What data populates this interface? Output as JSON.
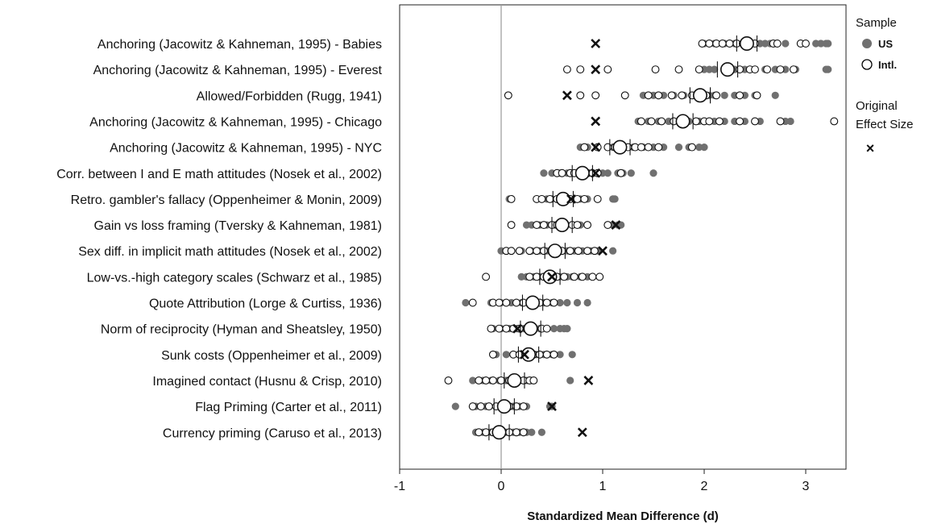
{
  "chart_data": {
    "type": "scatter",
    "title": "",
    "xlabel": "Standardized Mean Difference (d)",
    "ylabel": "",
    "xlim": [
      -1,
      3.4
    ],
    "xticks": [
      -1,
      0,
      1,
      2,
      3
    ],
    "grid": false,
    "reference_line": 0,
    "legend": {
      "title": "Sample",
      "position": "right",
      "entries": [
        {
          "name": "US",
          "marker": "filled-circle",
          "color": "#707070"
        },
        {
          "name": "Intl.",
          "marker": "open-circle",
          "color": "#000000"
        }
      ],
      "original_title_line1": "Original",
      "original_title_line2": "Effect Size",
      "original_marker": "×"
    },
    "rows": [
      {
        "label": "Anchoring (Jacowitz & Kahneman, 1995) - Babies",
        "mean": 2.42,
        "original": 0.93,
        "us": [
          2.0,
          2.1,
          2.2,
          2.3,
          2.45,
          2.55,
          2.6,
          2.7,
          2.8,
          3.1,
          3.15,
          3.2,
          3.22,
          2.65
        ],
        "intl": [
          1.98,
          2.05,
          2.12,
          2.18,
          2.25,
          2.32,
          2.38,
          2.5,
          2.68,
          2.72,
          2.95,
          3.0
        ]
      },
      {
        "label": "Anchoring (Jacowitz & Kahneman, 1995) - Everest",
        "mean": 2.23,
        "original": 0.93,
        "us": [
          2.0,
          2.05,
          2.1,
          2.2,
          2.3,
          2.4,
          2.5,
          2.6,
          2.7,
          2.8,
          2.9,
          3.2,
          3.22
        ],
        "intl": [
          0.65,
          0.78,
          1.05,
          1.52,
          1.75,
          1.95,
          2.35,
          2.45,
          2.5,
          2.62,
          2.75,
          2.88
        ]
      },
      {
        "label": "Allowed/Forbidden (Rugg, 1941)",
        "mean": 1.96,
        "original": 0.65,
        "us": [
          1.4,
          1.5,
          1.6,
          1.7,
          1.8,
          1.9,
          2.0,
          2.05,
          2.1,
          2.2,
          2.3,
          2.4,
          2.5,
          2.7
        ],
        "intl": [
          0.07,
          0.78,
          0.93,
          1.22,
          1.45,
          1.55,
          1.68,
          1.78,
          1.88,
          2.02,
          2.12,
          2.35,
          2.52
        ]
      },
      {
        "label": "Anchoring (Jacowitz & Kahneman, 1995) - Chicago",
        "mean": 1.79,
        "original": 0.93,
        "us": [
          1.35,
          1.45,
          1.55,
          1.65,
          1.75,
          1.85,
          1.95,
          2.1,
          2.2,
          2.3,
          2.4,
          2.5,
          2.55,
          2.8,
          2.85
        ],
        "intl": [
          1.38,
          1.48,
          1.58,
          1.7,
          1.8,
          1.92,
          2.0,
          2.05,
          2.15,
          2.35,
          2.5,
          2.75,
          3.28
        ]
      },
      {
        "label": "Anchoring (Jacowitz & Kahneman, 1995) - NYC",
        "mean": 1.17,
        "original": 0.93,
        "us": [
          0.78,
          0.85,
          0.95,
          1.05,
          1.1,
          1.2,
          1.3,
          1.4,
          1.5,
          1.6,
          1.75,
          1.85,
          1.95,
          2.0
        ],
        "intl": [
          0.82,
          0.95,
          1.05,
          1.12,
          1.25,
          1.32,
          1.38,
          1.45,
          1.55,
          1.88
        ]
      },
      {
        "label": "Corr. between I and E math attitudes (Nosek et al., 2002)",
        "mean": 0.8,
        "original": 0.93,
        "us": [
          0.42,
          0.5,
          0.58,
          0.65,
          0.72,
          0.8,
          0.88,
          0.95,
          1.0,
          1.05,
          1.15,
          1.2,
          1.28,
          1.5
        ],
        "intl": [
          0.55,
          0.6,
          0.68,
          0.72,
          0.78,
          0.85,
          0.9,
          0.95,
          1.18
        ]
      },
      {
        "label": "Retro. gambler's fallacy (Oppenheimer & Monin, 2009)",
        "mean": 0.61,
        "original": 0.69,
        "us": [
          0.08,
          0.4,
          0.45,
          0.5,
          0.55,
          0.6,
          0.65,
          0.72,
          0.78,
          0.85,
          1.1,
          1.12
        ],
        "intl": [
          0.1,
          0.35,
          0.4,
          0.48,
          0.55,
          0.62,
          0.68,
          0.75,
          0.82,
          0.95
        ]
      },
      {
        "label": "Gain vs loss framing (Tversky & Kahneman, 1981)",
        "mean": 0.6,
        "original": 1.13,
        "us": [
          0.25,
          0.3,
          0.38,
          0.45,
          0.52,
          0.58,
          0.62,
          0.7,
          0.78,
          1.1,
          1.15,
          1.18
        ],
        "intl": [
          0.1,
          0.35,
          0.42,
          0.5,
          0.55,
          0.62,
          0.7,
          0.75,
          0.85,
          1.05
        ]
      },
      {
        "label": "Sex diff. in implicit math attitudes (Nosek et al., 2002)",
        "mean": 0.53,
        "original": 1.0,
        "us": [
          0.0,
          0.2,
          0.3,
          0.38,
          0.45,
          0.52,
          0.58,
          0.65,
          0.72,
          0.8,
          0.88,
          0.95,
          1.1
        ],
        "intl": [
          0.05,
          0.1,
          0.18,
          0.28,
          0.35,
          0.42,
          0.5,
          0.6,
          0.68,
          0.76,
          0.85,
          0.92
        ]
      },
      {
        "label": "Low-vs.-high category scales (Schwarz et al., 1985)",
        "mean": 0.48,
        "original": 0.5,
        "us": [
          0.2,
          0.25,
          0.32,
          0.38,
          0.45,
          0.52,
          0.58,
          0.65,
          0.7,
          0.78,
          0.85
        ],
        "intl": [
          -0.15,
          0.28,
          0.35,
          0.42,
          0.5,
          0.55,
          0.62,
          0.72,
          0.8,
          0.9,
          0.97
        ]
      },
      {
        "label": "Quote Attribution (Lorge & Curtiss, 1936)",
        "mean": 0.31,
        "original": null,
        "us": [
          -0.35,
          -0.1,
          0.0,
          0.1,
          0.2,
          0.28,
          0.35,
          0.42,
          0.5,
          0.58,
          0.65,
          0.75,
          0.85
        ],
        "intl": [
          -0.28,
          -0.08,
          -0.02,
          0.05,
          0.15,
          0.22,
          0.3,
          0.38,
          0.45,
          0.52
        ]
      },
      {
        "label": "Norm of reciprocity (Hyman and Sheatsley, 1950)",
        "mean": 0.29,
        "original": 0.16,
        "us": [
          -0.08,
          0.0,
          0.08,
          0.15,
          0.22,
          0.3,
          0.38,
          0.45,
          0.52,
          0.58,
          0.62,
          0.65
        ],
        "intl": [
          -0.1,
          -0.02,
          0.05,
          0.12,
          0.18,
          0.25,
          0.32,
          0.4,
          0.45
        ]
      },
      {
        "label": "Sunk costs (Oppenheimer et al., 2009)",
        "mean": 0.27,
        "original": 0.23,
        "us": [
          -0.05,
          0.05,
          0.12,
          0.2,
          0.28,
          0.35,
          0.42,
          0.5,
          0.58,
          0.7
        ],
        "intl": [
          -0.08,
          0.12,
          0.18,
          0.25,
          0.32,
          0.38,
          0.45,
          0.52
        ]
      },
      {
        "label": "Imagined contact (Husnu & Crisp, 2010)",
        "mean": 0.13,
        "original": 0.86,
        "us": [
          -0.28,
          -0.18,
          -0.1,
          -0.02,
          0.05,
          0.12,
          0.18,
          0.25,
          0.3,
          0.68
        ],
        "intl": [
          -0.52,
          -0.22,
          -0.15,
          -0.08,
          0.0,
          0.08,
          0.15,
          0.22,
          0.28,
          0.32
        ]
      },
      {
        "label": "Flag Priming (Carter et al., 2011)",
        "mean": 0.03,
        "original": 0.5,
        "us": [
          -0.45,
          -0.25,
          -0.15,
          -0.05,
          0.05,
          0.12,
          0.18,
          0.25,
          0.48,
          0.5
        ],
        "intl": [
          -0.28,
          -0.2,
          -0.12,
          -0.05,
          0.02,
          0.08,
          0.15,
          0.22
        ]
      },
      {
        "label": "Currency priming (Caruso et al., 2013)",
        "mean": -0.02,
        "original": 0.8,
        "us": [
          -0.25,
          -0.18,
          -0.1,
          -0.02,
          0.05,
          0.12,
          0.18,
          0.25,
          0.3,
          0.4
        ],
        "intl": [
          -0.22,
          -0.15,
          -0.08,
          0.0,
          0.08,
          0.15,
          0.22
        ]
      }
    ]
  }
}
